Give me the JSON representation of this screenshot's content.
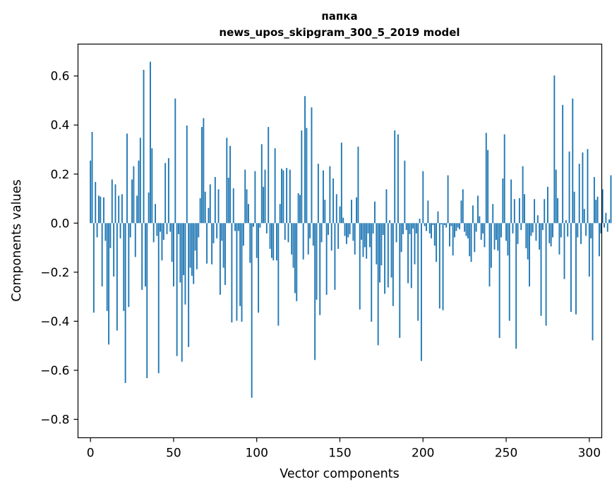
{
  "chart_data": {
    "type": "bar",
    "title": [
      "папка",
      "news_upos_skipgram_300_5_2019 model"
    ],
    "xlabel": "Vector components",
    "ylabel": "Components values",
    "xlim": [
      -7.5,
      307.5
    ],
    "ylim": [
      -0.875,
      0.73
    ],
    "xticks": [
      0,
      50,
      100,
      150,
      200,
      250,
      300
    ],
    "yticks": [
      -0.8,
      -0.6,
      -0.4,
      -0.2,
      0.0,
      0.2,
      0.4,
      0.6
    ],
    "ytick_labels": [
      "−0.8",
      "−0.6",
      "−0.4",
      "−0.2",
      "0.0",
      "0.2",
      "0.4",
      "0.6"
    ],
    "bar_color": "#1f77b4",
    "grid": false,
    "values": [
      0.255,
      0.372,
      -0.365,
      0.168,
      -0.058,
      0.112,
      0.108,
      -0.258,
      0.105,
      -0.072,
      -0.358,
      -0.495,
      -0.102,
      0.178,
      -0.218,
      0.158,
      -0.438,
      0.112,
      -0.062,
      0.118,
      -0.358,
      -0.652,
      0.365,
      -0.342,
      -0.058,
      0.178,
      0.232,
      -0.138,
      0.112,
      0.255,
      0.348,
      -0.272,
      0.625,
      -0.258,
      -0.632,
      0.125,
      0.658,
      0.305,
      -0.078,
      0.078,
      -0.052,
      -0.612,
      -0.035,
      -0.152,
      -0.068,
      0.245,
      -0.045,
      0.265,
      -0.035,
      -0.158,
      -0.258,
      0.508,
      -0.542,
      -0.045,
      -0.242,
      -0.565,
      -0.212,
      -0.332,
      0.398,
      -0.505,
      -0.182,
      -0.215,
      -0.248,
      -0.112,
      -0.188,
      -0.058,
      0.102,
      0.392,
      0.428,
      0.128,
      -0.165,
      0.062,
      0.158,
      -0.168,
      -0.082,
      0.188,
      -0.062,
      0.138,
      -0.292,
      -0.072,
      -0.182,
      -0.252,
      0.348,
      0.185,
      0.315,
      -0.405,
      0.142,
      -0.032,
      -0.398,
      -0.032,
      -0.338,
      -0.402,
      -0.092,
      0.218,
      0.138,
      0.078,
      -0.162,
      -0.712,
      -0.015,
      0.212,
      -0.142,
      -0.365,
      -0.018,
      0.322,
      0.148,
      0.218,
      -0.042,
      0.392,
      -0.105,
      -0.142,
      -0.152,
      0.305,
      -0.152,
      -0.418,
      0.078,
      0.222,
      0.215,
      -0.068,
      0.225,
      -0.078,
      0.218,
      -0.128,
      -0.182,
      -0.285,
      -0.318,
      0.122,
      0.115,
      0.378,
      -0.148,
      0.518,
      0.388,
      -0.128,
      -0.062,
      0.472,
      -0.092,
      -0.558,
      -0.312,
      0.242,
      -0.375,
      -0.078,
      0.215,
      0.095,
      -0.292,
      -0.048,
      0.232,
      -0.112,
      0.182,
      -0.272,
      0.118,
      -0.105,
      0.068,
      0.328,
      0.022,
      -0.052,
      -0.085,
      -0.058,
      -0.045,
      0.095,
      -0.072,
      -0.128,
      0.105,
      0.312,
      -0.352,
      -0.068,
      -0.138,
      -0.098,
      -0.145,
      -0.042,
      -0.098,
      -0.402,
      -0.042,
      0.088,
      -0.168,
      -0.498,
      -0.242,
      -0.172,
      -0.048,
      -0.288,
      0.138,
      -0.262,
      0.012,
      -0.222,
      -0.338,
      0.378,
      -0.078,
      0.362,
      -0.468,
      -0.118,
      -0.045,
      0.255,
      -0.028,
      -0.245,
      -0.045,
      -0.265,
      -0.022,
      -0.168,
      -0.042,
      -0.398,
      0.018,
      -0.562,
      0.212,
      -0.012,
      -0.032,
      0.092,
      -0.042,
      -0.062,
      -0.008,
      -0.092,
      -0.158,
      0.048,
      -0.348,
      -0.005,
      -0.355,
      -0.008,
      -0.018,
      0.195,
      -0.095,
      -0.012,
      -0.132,
      -0.058,
      -0.032,
      -0.018,
      -0.025,
      0.092,
      0.138,
      -0.035,
      -0.052,
      -0.062,
      -0.135,
      -0.158,
      0.072,
      -0.118,
      -0.035,
      0.112,
      0.028,
      -0.068,
      -0.042,
      -0.098,
      0.368,
      0.298,
      -0.258,
      -0.182,
      0.078,
      -0.108,
      -0.068,
      -0.112,
      -0.468,
      -0.058,
      0.182,
      0.362,
      -0.072,
      -0.132,
      -0.398,
      0.178,
      -0.042,
      0.098,
      -0.512,
      -0.085,
      0.102,
      -0.028,
      0.232,
      0.118,
      -0.102,
      -0.148,
      -0.258,
      -0.052,
      -0.038,
      0.098,
      -0.072,
      0.032,
      -0.108,
      -0.378,
      -0.028,
      0.098,
      -0.418,
      0.148,
      -0.082,
      -0.095,
      -0.058,
      0.602,
      0.218,
      0.102,
      -0.128,
      -0.058,
      0.482,
      -0.228,
      0.012,
      -0.055,
      0.292,
      -0.362,
      0.508,
      0.128,
      -0.372,
      -0.058,
      0.242,
      -0.085,
      0.288,
      0.058,
      -0.052,
      0.302,
      -0.218,
      -0.062,
      -0.478,
      0.188,
      0.095,
      0.108,
      -0.135,
      -0.042,
      0.138,
      -0.018,
      0.042,
      -0.035,
      0.015,
      0.195
    ]
  }
}
